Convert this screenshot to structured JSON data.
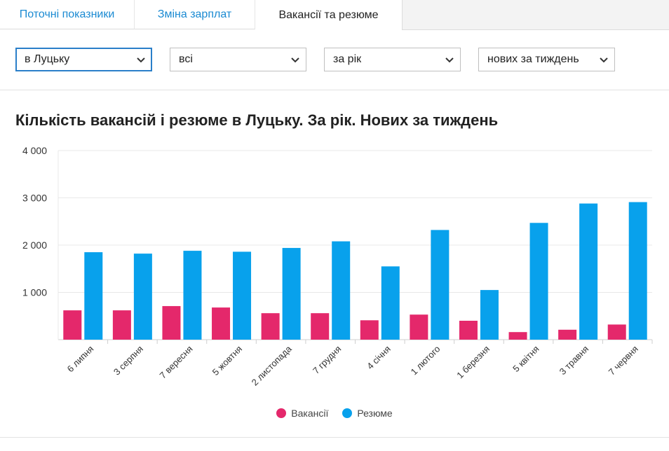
{
  "tabs": [
    {
      "label": "Поточні показники",
      "active": false
    },
    {
      "label": "Зміна зарплат",
      "active": false
    },
    {
      "label": "Вакансії та резюме",
      "active": true
    }
  ],
  "filters": {
    "city": "в Луцьку",
    "category": "всі",
    "period": "за рік",
    "type": "нових за тиждень"
  },
  "colors": {
    "vacancies": "#e4286b",
    "resumes": "#08a1ec",
    "link": "#1a8ad2"
  },
  "chart_data": {
    "type": "bar",
    "title": "Кількість вакансій і резюме в Луцьку. За рік. Нових за тиждень",
    "categories": [
      "6 липня",
      "3 серпня",
      "7 вересня",
      "5 жовтня",
      "2 листопада",
      "7 грудня",
      "4 січня",
      "1 лютого",
      "1 березня",
      "5 квітня",
      "3 травня",
      "7 червня"
    ],
    "series": [
      {
        "name": "Вакансії",
        "values": [
          620,
          620,
          710,
          680,
          560,
          560,
          410,
          530,
          400,
          160,
          210,
          320
        ]
      },
      {
        "name": "Резюме",
        "values": [
          1850,
          1820,
          1880,
          1860,
          1940,
          2080,
          1550,
          2320,
          1050,
          2470,
          2880,
          2910
        ]
      }
    ],
    "ylim": [
      0,
      4000
    ],
    "yticks": [
      0,
      1000,
      2000,
      3000,
      4000
    ],
    "ytick_labels": [
      "",
      "1 000",
      "2 000",
      "3 000",
      "4 000"
    ],
    "grid": true,
    "legend": "bottom-center"
  }
}
